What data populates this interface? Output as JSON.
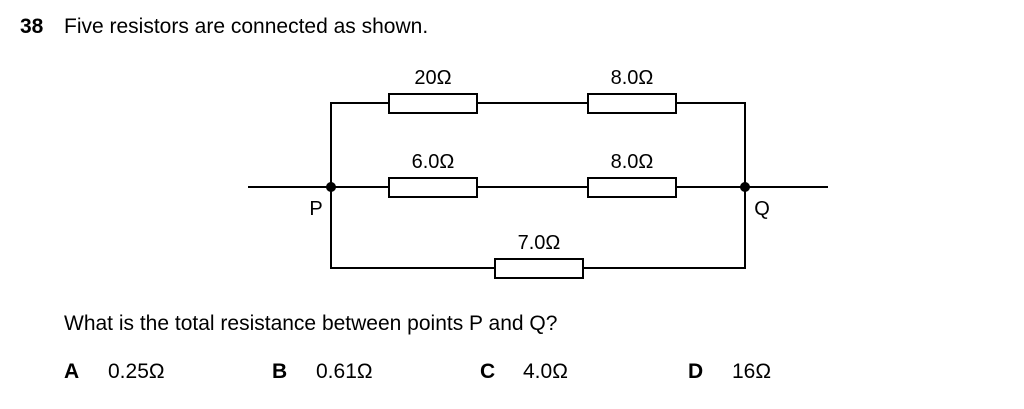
{
  "question": {
    "number": "38",
    "stem": "Five resistors are connected as shown.",
    "prompt": "What is the total resistance between points P and Q?"
  },
  "circuit": {
    "resistors": [
      {
        "label": "20Ω"
      },
      {
        "label": "8.0Ω"
      },
      {
        "label": "6.0Ω"
      },
      {
        "label": "8.0Ω"
      },
      {
        "label": "7.0Ω"
      }
    ],
    "point_p": "P",
    "point_q": "Q"
  },
  "options": [
    {
      "letter": "A",
      "value": "0.25Ω"
    },
    {
      "letter": "B",
      "value": "0.61Ω"
    },
    {
      "letter": "C",
      "value": "4.0Ω"
    },
    {
      "letter": "D",
      "value": "16Ω"
    }
  ]
}
